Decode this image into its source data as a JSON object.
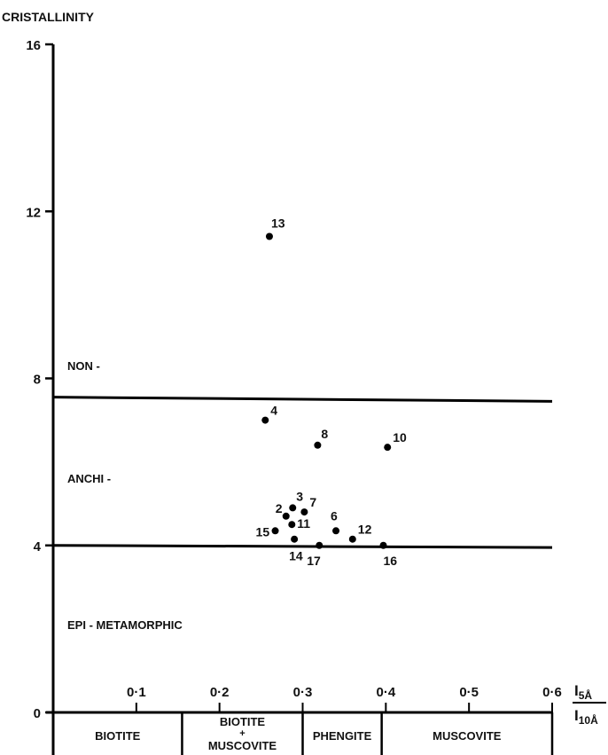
{
  "chart_data": {
    "type": "scatter",
    "ylabel": "CRISTALLINITY",
    "xlabel": {
      "numerator": "I",
      "numerator_sub": "5Å",
      "denominator": "I",
      "denominator_sub": "10Å"
    },
    "xlim": [
      0,
      0.6
    ],
    "ylim": [
      0,
      16
    ],
    "yticks": [
      0,
      4,
      8,
      12,
      16
    ],
    "ytick_labels": [
      "0",
      "4",
      "8",
      "12",
      "16"
    ],
    "xticks": [
      0.1,
      0.2,
      0.3,
      0.4,
      0.5,
      0.6
    ],
    "xtick_labels": [
      "0·1",
      "0·2",
      "0·3",
      "0·4",
      "0·5",
      "0·6"
    ],
    "grid": false,
    "points": [
      {
        "label": "2",
        "x": 0.28,
        "y": 4.7
      },
      {
        "label": "3",
        "x": 0.288,
        "y": 4.9
      },
      {
        "label": "4",
        "x": 0.255,
        "y": 7.0
      },
      {
        "label": "6",
        "x": 0.34,
        "y": 4.35
      },
      {
        "label": "7",
        "x": 0.302,
        "y": 4.8
      },
      {
        "label": "8",
        "x": 0.318,
        "y": 6.4
      },
      {
        "label": "10",
        "x": 0.402,
        "y": 6.35
      },
      {
        "label": "11",
        "x": 0.287,
        "y": 4.5
      },
      {
        "label": "12",
        "x": 0.36,
        "y": 4.15
      },
      {
        "label": "13",
        "x": 0.26,
        "y": 11.4
      },
      {
        "label": "14",
        "x": 0.29,
        "y": 4.15
      },
      {
        "label": "15",
        "x": 0.267,
        "y": 4.35
      },
      {
        "label": "16",
        "x": 0.397,
        "y": 4.0
      },
      {
        "label": "17",
        "x": 0.32,
        "y": 4.0
      }
    ],
    "boundaries": [
      {
        "y_start": 7.55,
        "y_end": 7.45
      },
      {
        "y_start": 4.0,
        "y_end": 3.95
      }
    ],
    "zones": [
      {
        "label": "NON -",
        "y": 8.2
      },
      {
        "label": "ANCHI -",
        "y": 5.5
      },
      {
        "label": "EPI - METAMORPHIC",
        "y": 2.0
      }
    ],
    "mineral_bands": [
      {
        "lines": [
          "BIOTITE"
        ],
        "x0": 0.0,
        "x1": 0.155
      },
      {
        "lines": [
          "BIOTITE",
          "+",
          "MUSCOVITE"
        ],
        "x0": 0.155,
        "x1": 0.3
      },
      {
        "lines": [
          "PHENGITE"
        ],
        "x0": 0.3,
        "x1": 0.395
      },
      {
        "lines": [
          "MUSCOVITE"
        ],
        "x0": 0.395,
        "x1": 0.6
      }
    ]
  }
}
